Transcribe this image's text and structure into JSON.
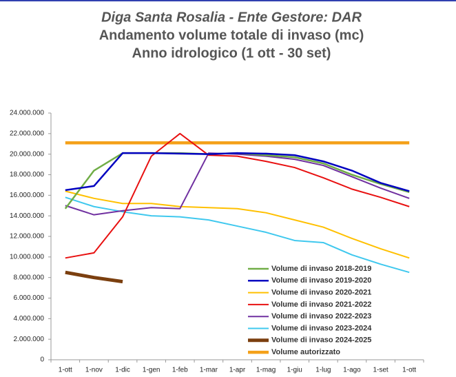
{
  "chart_data": {
    "type": "line",
    "title": "Diga Santa Rosalia - Ente Gestore: DAR",
    "subtitle": [
      "Andamento volume totale di invaso (mc)",
      "Anno idrologico (1 ott - 30 set)"
    ],
    "categories": [
      "1-ott",
      "1-nov",
      "1-dic",
      "1-gen",
      "1-feb",
      "1-mar",
      "1-apr",
      "1-mag",
      "1-giu",
      "1-lug",
      "1-ago",
      "1-set",
      "1-ott"
    ],
    "series": [
      {
        "name": "Volume di invaso 2018-2019",
        "color": "#70ad47",
        "width": 2.5,
        "values": [
          14700000,
          18400000,
          20100000,
          20100000,
          20100000,
          20000000,
          20100000,
          19900000,
          19700000,
          19100000,
          18000000,
          17100000,
          16300000
        ]
      },
      {
        "name": "Volume di invaso 2019-2020",
        "color": "#0000c0",
        "width": 2.5,
        "values": [
          16500000,
          16900000,
          20100000,
          20100000,
          20050000,
          20000000,
          20100000,
          20050000,
          19900000,
          19300000,
          18400000,
          17200000,
          16400000
        ]
      },
      {
        "name": "Volume di invaso 2020-2021",
        "color": "#ffc000",
        "width": 2,
        "values": [
          16400000,
          15700000,
          15200000,
          15200000,
          14900000,
          14800000,
          14700000,
          14300000,
          13600000,
          12900000,
          11800000,
          10800000,
          9900000
        ]
      },
      {
        "name": "Volume di invaso 2021-2022",
        "color": "#e81010",
        "width": 2,
        "values": [
          9900000,
          10400000,
          13900000,
          19800000,
          22000000,
          19900000,
          19800000,
          19300000,
          18700000,
          17700000,
          16600000,
          15800000,
          14900000
        ]
      },
      {
        "name": "Volume di invaso 2022-2023",
        "color": "#7030a0",
        "width": 2,
        "values": [
          15000000,
          14100000,
          14500000,
          14800000,
          14700000,
          20100000,
          20000000,
          19800000,
          19500000,
          18900000,
          17800000,
          16700000,
          15700000
        ]
      },
      {
        "name": "Volume di invaso 2023-2024",
        "color": "#3fc8ee",
        "width": 2,
        "values": [
          15800000,
          14900000,
          14400000,
          14000000,
          13900000,
          13600000,
          13000000,
          12400000,
          11600000,
          11400000,
          10200000,
          9300000,
          8500000
        ]
      },
      {
        "name": "Volume di invaso 2024-2025",
        "color": "#7b3f0f",
        "width": 5,
        "values": [
          8500000,
          8000000,
          7600000,
          null,
          null,
          null,
          null,
          null,
          null,
          null,
          null,
          null,
          null
        ]
      },
      {
        "name": "Volume autorizzato",
        "color": "#f4a11a",
        "width": 4.5,
        "values": [
          21100000,
          21100000,
          21100000,
          21100000,
          21100000,
          21100000,
          21100000,
          21100000,
          21100000,
          21100000,
          21100000,
          21100000,
          21100000
        ]
      }
    ],
    "ylim": [
      0,
      24000000
    ],
    "yticks": [
      0,
      {
        "value": 2000000,
        "label": "2.000.000"
      },
      {
        "value": 4000000,
        "label": "4.000.000"
      },
      {
        "value": 6000000,
        "label": "6.000.000"
      },
      {
        "value": 8000000,
        "label": "8.000.000"
      },
      {
        "value": 10000000,
        "label": "10.000.000"
      },
      {
        "value": 12000000,
        "label": "12.000.000"
      },
      {
        "value": 14000000,
        "label": "14.000.000"
      },
      {
        "value": 16000000,
        "label": "16.000.000"
      },
      {
        "value": 18000000,
        "label": "18.000.000"
      },
      {
        "value": 20000000,
        "label": "20.000.000"
      },
      {
        "value": 22000000,
        "label": "22.000.000"
      },
      {
        "value": 24000000,
        "label": "24.000.000"
      }
    ],
    "grid": false,
    "legend": "lower right"
  }
}
